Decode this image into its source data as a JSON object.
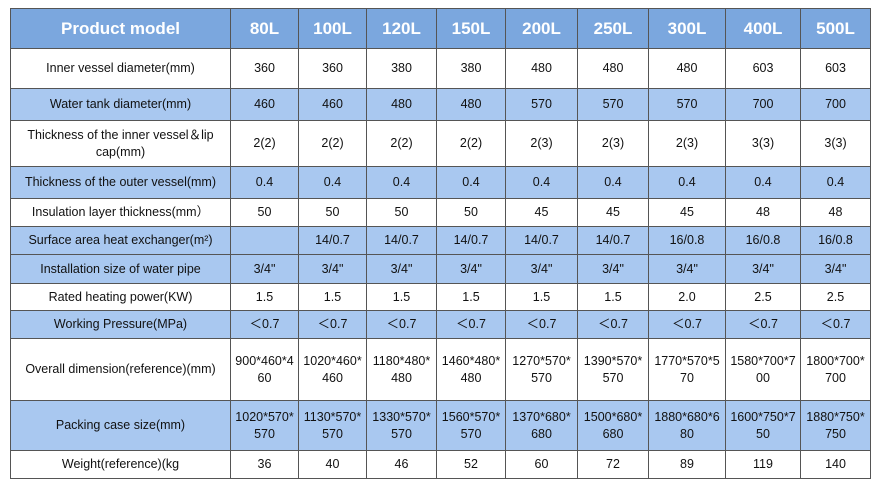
{
  "table": {
    "header": [
      "Product model",
      "80L",
      "100L",
      "120L",
      "150L",
      "200L",
      "250L",
      "300L",
      "400L",
      "500L"
    ],
    "rows": [
      [
        "Inner vessel diameter(mm)",
        "360",
        "360",
        "380",
        "380",
        "480",
        "480",
        "480",
        "603",
        "603"
      ],
      [
        "Water tank diameter(mm)",
        "460",
        "460",
        "480",
        "480",
        "570",
        "570",
        "570",
        "700",
        "700"
      ],
      [
        "Thickness of the inner vessel＆lip cap(mm)",
        "2(2)",
        "2(2)",
        "2(2)",
        "2(2)",
        "2(3)",
        "2(3)",
        "2(3)",
        "3(3)",
        "3(3)"
      ],
      [
        "Thickness of the outer vessel(mm)",
        "0.4",
        "0.4",
        "0.4",
        "0.4",
        "0.4",
        "0.4",
        "0.4",
        "0.4",
        "0.4"
      ],
      [
        "Insulation layer thickness(mm）",
        "50",
        "50",
        "50",
        "50",
        "45",
        "45",
        "45",
        "48",
        "48"
      ],
      [
        "Surface area heat exchanger(m²)",
        null,
        "14/0.7",
        "14/0.7",
        "14/0.7",
        "14/0.7",
        "14/0.7",
        "16/0.8",
        "16/0.8",
        "16/0.8"
      ],
      [
        "Installation size of water pipe",
        "3/4\"",
        "3/4\"",
        "3/4\"",
        "3/4\"",
        "3/4\"",
        "3/4\"",
        "3/4\"",
        "3/4\"",
        "3/4\""
      ],
      [
        "Rated heating power(KW)",
        "1.5",
        "1.5",
        "1.5",
        "1.5",
        "1.5",
        "1.5",
        "2.0",
        "2.5",
        "2.5"
      ],
      [
        "Working Pressure(MPa)",
        "＜0.7",
        "＜0.7",
        "＜0.7",
        "＜0.7",
        "＜0.7",
        "＜0.7",
        "＜0.7",
        "＜0.7",
        "＜0.7"
      ],
      [
        "Overall dimension(reference)(mm)",
        "900*460*460",
        "1020*460*460",
        "1180*480*480",
        "1460*480*480",
        "1270*570*570",
        "1390*570*570",
        "1770*570*570",
        "1580*700*700",
        "1800*700*700"
      ],
      [
        "Packing case size(mm)",
        "1020*570*570",
        "1130*570*570",
        "1330*570*570",
        "1560*570*570",
        "1370*680*680",
        "1500*680*680",
        "1880*680*680",
        "1600*750*750",
        "1880*750*750"
      ],
      [
        "Weight(reference)(kg",
        "36",
        "40",
        "46",
        "52",
        "60",
        "72",
        "89",
        "119",
        "140"
      ]
    ]
  }
}
